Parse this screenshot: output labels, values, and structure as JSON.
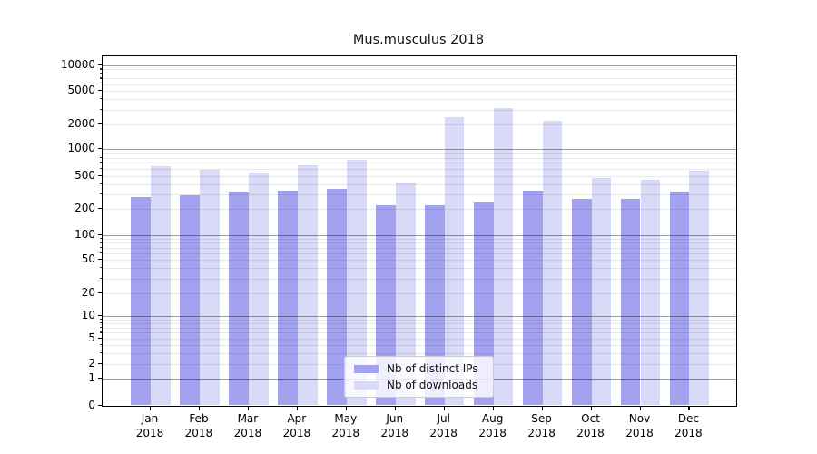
{
  "title": "Mus.musculus 2018",
  "chart_data": {
    "type": "bar",
    "title": "Mus.musculus 2018",
    "scale": "symlog",
    "grid": true,
    "legend_position": "lower center",
    "categories": [
      "Jan",
      "Feb",
      "Mar",
      "Apr",
      "May",
      "Jun",
      "Jul",
      "Aug",
      "Sep",
      "Oct",
      "Nov",
      "Dec"
    ],
    "category_year": "2018",
    "xlabel": "",
    "ylabel": "",
    "ylim": [
      0,
      10000
    ],
    "yticks": [
      0,
      1,
      2,
      5,
      10,
      20,
      50,
      100,
      200,
      500,
      1000,
      2000,
      5000,
      10000
    ],
    "series": [
      {
        "name": "Nb of distinct IPs",
        "color": "#a2a2f0",
        "values": [
          276,
          293,
          316,
          330,
          347,
          223,
          222,
          239,
          335,
          266,
          268,
          324
        ]
      },
      {
        "name": "Nb of downloads",
        "color": "#d9d9f8",
        "values": [
          650,
          590,
          548,
          660,
          752,
          415,
          2450,
          3150,
          2200,
          480,
          455,
          578
        ]
      }
    ]
  },
  "colors": {
    "grid_major": "#9e9e9e",
    "grid_minor": "#e8e8e8",
    "axis": "#000000",
    "background": "#ffffff"
  }
}
